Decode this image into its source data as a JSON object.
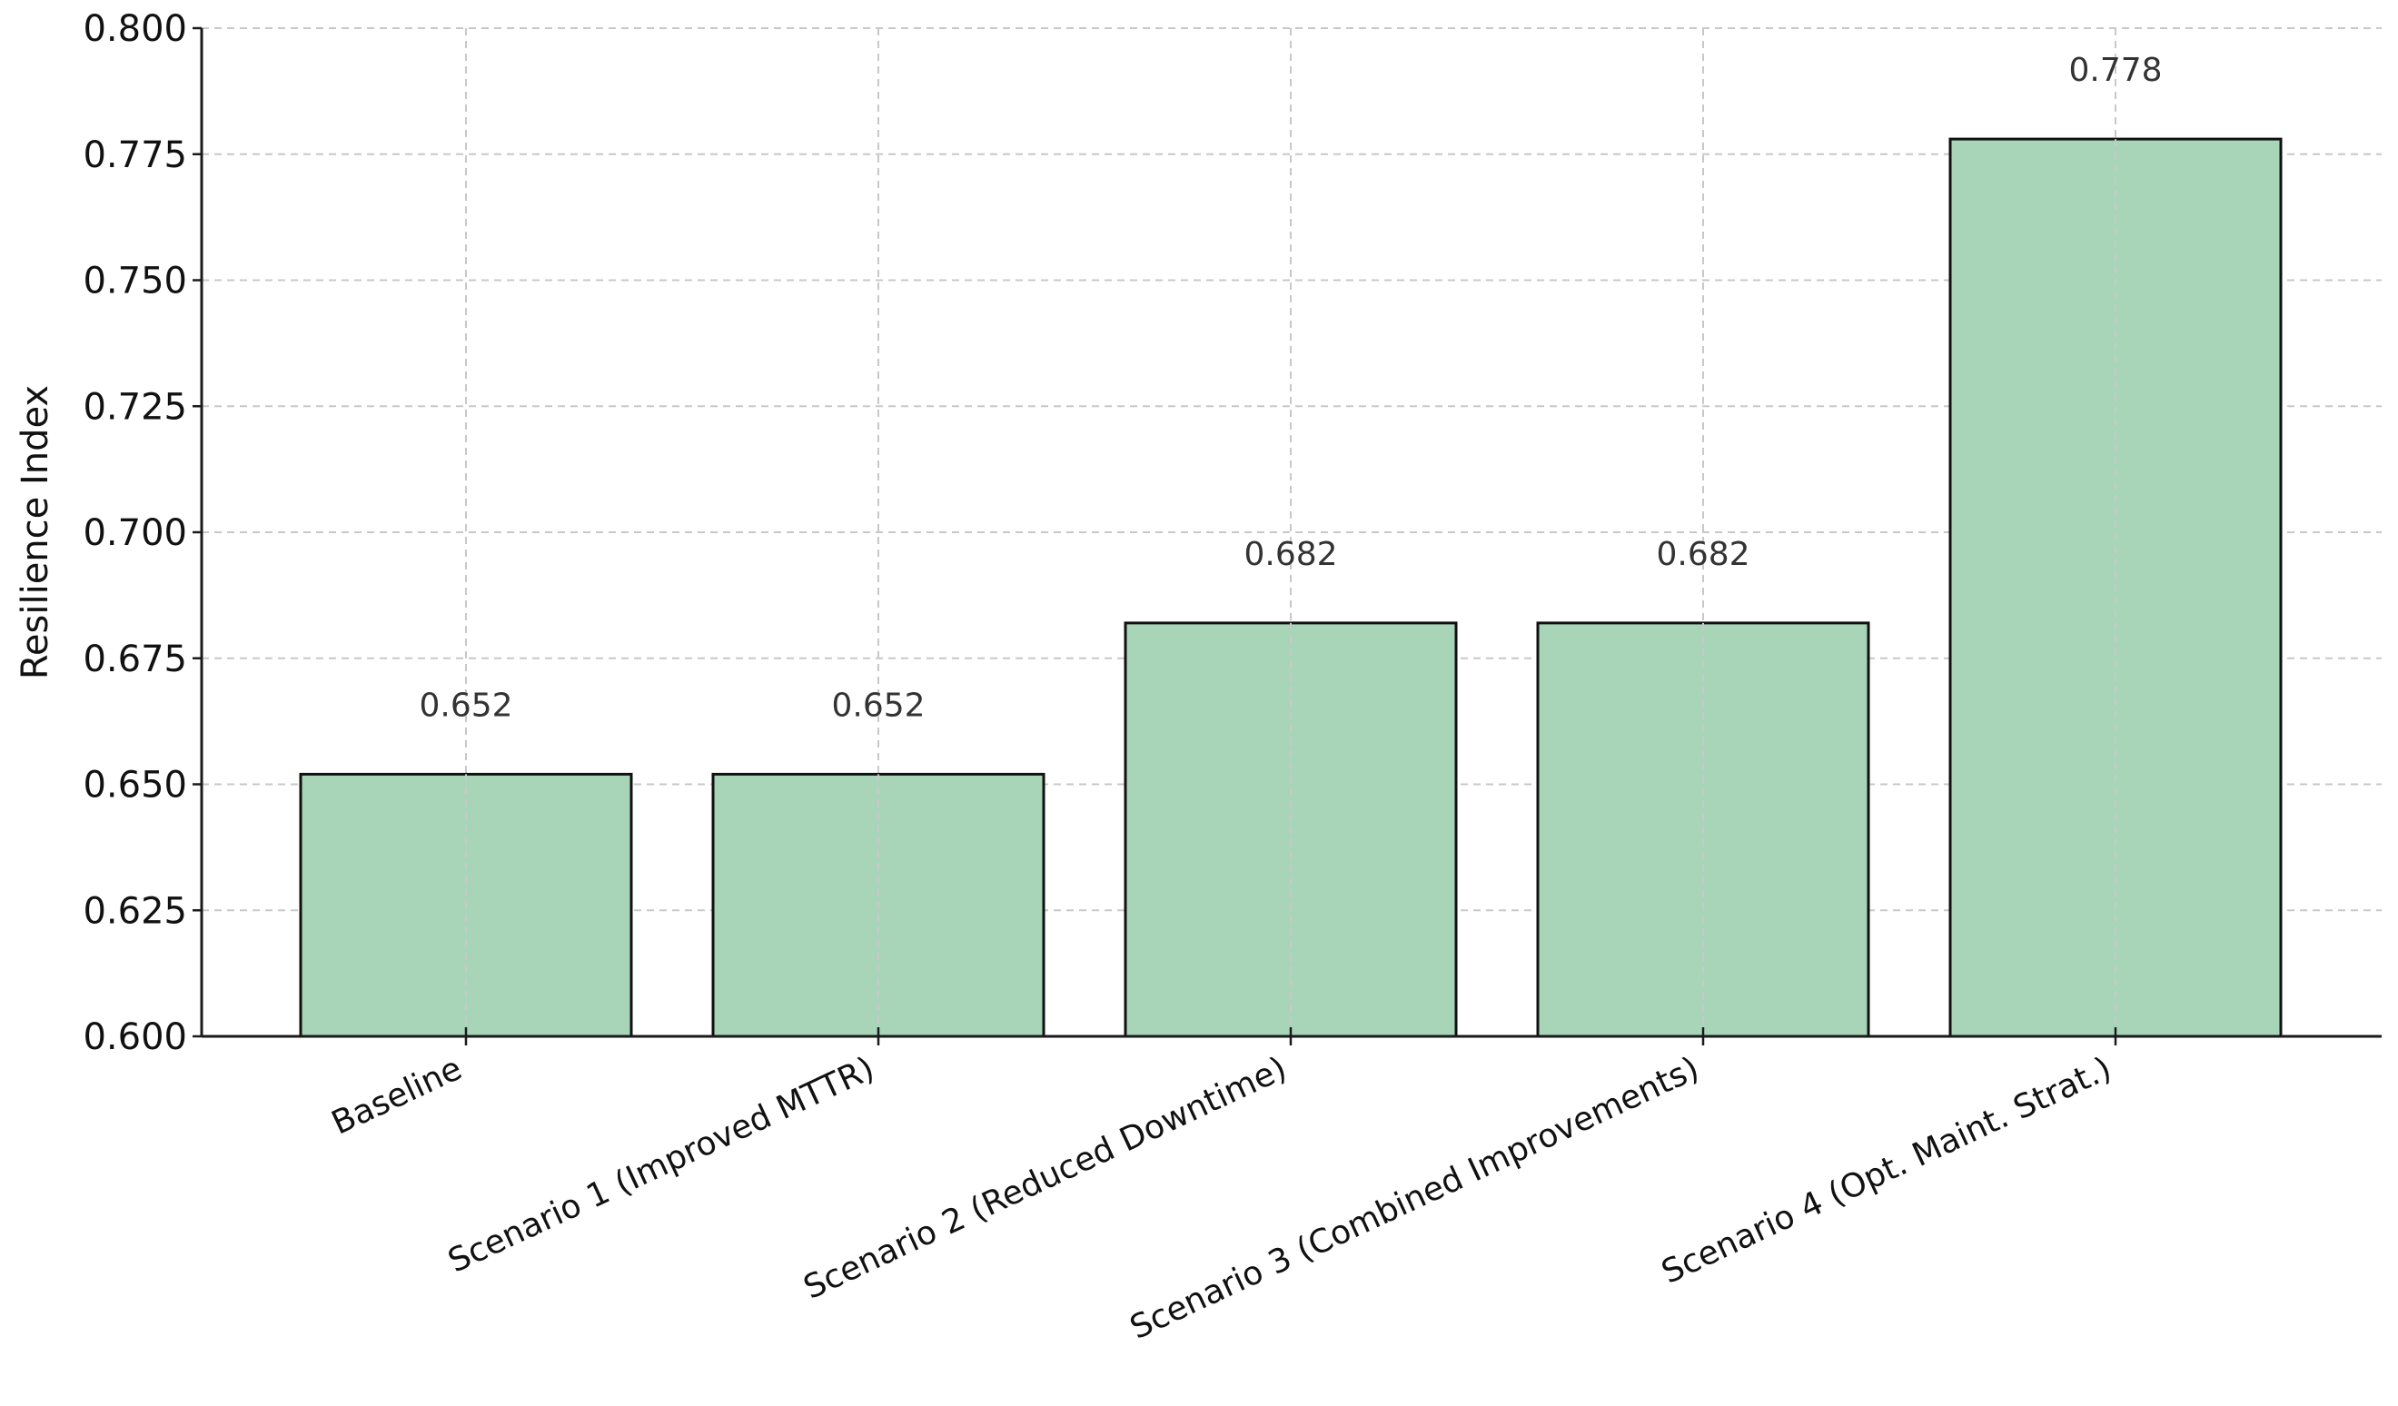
{
  "chart_data": {
    "type": "bar",
    "categories": [
      "Baseline",
      "Scenario 1 (Improved MTTR)",
      "Scenario 2 (Reduced Downtime)",
      "Scenario 3 (Combined Improvements)",
      "Scenario 4 (Opt. Maint. Strat.)"
    ],
    "values": [
      0.652,
      0.652,
      0.682,
      0.682,
      0.778
    ],
    "data_labels": [
      "0.652",
      "0.652",
      "0.682",
      "0.682",
      "0.778"
    ],
    "title": "",
    "xlabel": "",
    "ylabel": "Resilience Index",
    "ylim": [
      0.6,
      0.8
    ],
    "yticks": [
      0.6,
      0.625,
      0.65,
      0.675,
      0.7,
      0.725,
      0.75,
      0.775,
      0.8
    ],
    "ytick_labels": [
      "0.600",
      "0.625",
      "0.650",
      "0.675",
      "0.700",
      "0.725",
      "0.750",
      "0.775",
      "0.800"
    ],
    "grid": true,
    "legend": null,
    "colors": {
      "bar_fill": "#a8d5b8",
      "bar_edge": "#111111",
      "grid": "#c8c8c8"
    }
  }
}
